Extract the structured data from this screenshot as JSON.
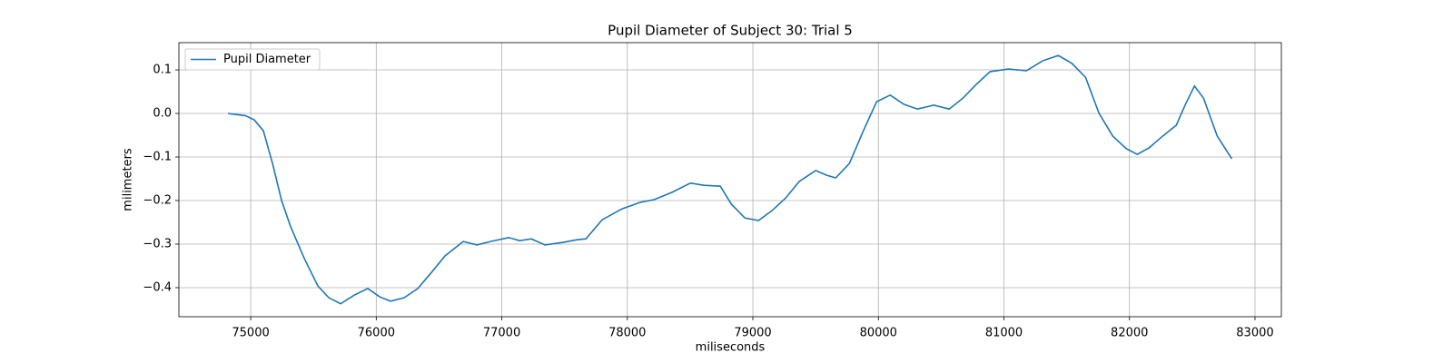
{
  "chart_data": {
    "type": "line",
    "title": "Pupil Diameter of Subject 30: Trial 5",
    "xlabel": "miliseconds",
    "ylabel": "milimeters",
    "x": [
      74819,
      74899,
      74957,
      75029,
      75101,
      75174,
      75246,
      75318,
      75427,
      75535,
      75622,
      75716,
      75825,
      75933,
      76027,
      76114,
      76223,
      76331,
      76440,
      76548,
      76693,
      76802,
      76910,
      77055,
      77142,
      77236,
      77344,
      77489,
      77598,
      77670,
      77800,
      77959,
      78104,
      78213,
      78357,
      78502,
      78611,
      78741,
      78828,
      78936,
      79045,
      79153,
      79262,
      79370,
      79501,
      79588,
      79660,
      79769,
      79877,
      79986,
      80094,
      80203,
      80311,
      80441,
      80564,
      80673,
      80781,
      80890,
      81035,
      81179,
      81310,
      81433,
      81541,
      81650,
      81758,
      81867,
      81975,
      82062,
      82156,
      82265,
      82373,
      82446,
      82518,
      82590,
      82699,
      82815
    ],
    "series": [
      {
        "name": "Pupil Diameter",
        "color": "#1f77b4",
        "values": [
          0.0,
          -0.003,
          -0.005,
          -0.015,
          -0.04,
          -0.115,
          -0.2,
          -0.26,
          -0.333,
          -0.396,
          -0.423,
          -0.437,
          -0.417,
          -0.402,
          -0.421,
          -0.431,
          -0.423,
          -0.402,
          -0.365,
          -0.327,
          -0.294,
          -0.302,
          -0.294,
          -0.285,
          -0.292,
          -0.288,
          -0.302,
          -0.296,
          -0.29,
          -0.288,
          -0.244,
          -0.219,
          -0.204,
          -0.198,
          -0.181,
          -0.16,
          -0.165,
          -0.167,
          -0.208,
          -0.24,
          -0.246,
          -0.223,
          -0.194,
          -0.156,
          -0.131,
          -0.142,
          -0.148,
          -0.115,
          -0.042,
          0.027,
          0.042,
          0.021,
          0.01,
          0.019,
          0.01,
          0.035,
          0.067,
          0.096,
          0.102,
          0.098,
          0.121,
          0.133,
          0.115,
          0.083,
          0.0,
          -0.052,
          -0.081,
          -0.094,
          -0.079,
          -0.052,
          -0.027,
          0.021,
          0.063,
          0.035,
          -0.052,
          -0.104
        ]
      }
    ],
    "xlim": [
      74428,
      83210
    ],
    "xticks": [
      75000,
      76000,
      77000,
      78000,
      79000,
      80000,
      81000,
      82000,
      83000
    ],
    "ylim": [
      -0.4667,
      0.1625
    ],
    "yticks": [
      0.1,
      {
        "value": 0,
        "label": "0.0"
      },
      {
        "value": -0.1,
        "label": "−0.1"
      },
      {
        "value": -0.2,
        "label": "−0.2"
      },
      {
        "value": -0.3,
        "label": "−0.3"
      },
      {
        "value": -0.4,
        "label": "−0.4"
      }
    ],
    "grid": true,
    "legend": "upper left"
  }
}
